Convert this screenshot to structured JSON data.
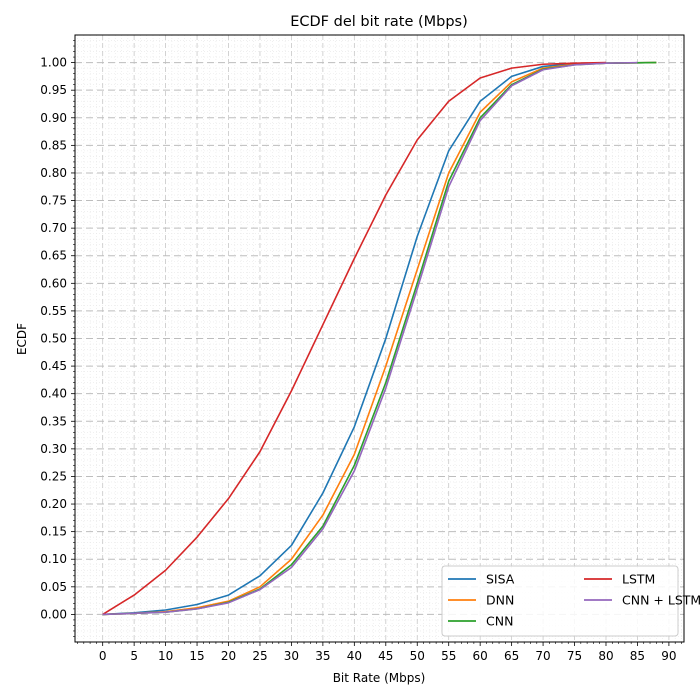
{
  "chart_data": {
    "type": "line",
    "title": "ECDF del bit rate (Mbps)",
    "xlabel": "Bit Rate (Mbps)",
    "ylabel": "ECDF",
    "xlim": [
      -4.4,
      92.4
    ],
    "ylim": [
      -0.05,
      1.05
    ],
    "xticks": [
      0,
      5,
      10,
      15,
      20,
      25,
      30,
      35,
      40,
      45,
      50,
      55,
      60,
      65,
      70,
      75,
      80,
      85,
      90
    ],
    "yticks": [
      0.0,
      0.05,
      0.1,
      0.15,
      0.2,
      0.25,
      0.3,
      0.35,
      0.4,
      0.45,
      0.5,
      0.55,
      0.6,
      0.65,
      0.7,
      0.75,
      0.8,
      0.85,
      0.9,
      0.95,
      1.0
    ],
    "ytick_labels": [
      "0.00",
      "0.05",
      "0.10",
      "0.15",
      "0.20",
      "0.25",
      "0.30",
      "0.35",
      "0.40",
      "0.45",
      "0.50",
      "0.55",
      "0.60",
      "0.65",
      "0.70",
      "0.75",
      "0.80",
      "0.85",
      "0.90",
      "0.95",
      "1.00"
    ],
    "grid": "major dashed, minor dotted",
    "legend_position": "lower-right",
    "legend_columns": 2,
    "series": [
      {
        "name": "SISA",
        "color": "#1f77b4",
        "x": [
          0,
          5,
          10,
          15,
          20,
          25,
          30,
          35,
          40,
          45,
          50,
          55,
          60,
          65,
          70,
          75,
          80,
          88
        ],
        "y": [
          0.0,
          0.003,
          0.008,
          0.018,
          0.035,
          0.07,
          0.125,
          0.22,
          0.34,
          0.5,
          0.685,
          0.84,
          0.93,
          0.975,
          0.993,
          0.998,
          0.999,
          1.0
        ]
      },
      {
        "name": "DNN",
        "color": "#ff7f0e",
        "x": [
          0,
          5,
          10,
          15,
          20,
          25,
          30,
          35,
          40,
          45,
          50,
          55,
          60,
          65,
          70,
          75,
          80,
          88
        ],
        "y": [
          0.0,
          0.002,
          0.005,
          0.012,
          0.024,
          0.05,
          0.1,
          0.18,
          0.29,
          0.45,
          0.625,
          0.8,
          0.91,
          0.965,
          0.99,
          0.997,
          0.999,
          1.0
        ]
      },
      {
        "name": "CNN",
        "color": "#2ca02c",
        "x": [
          0,
          5,
          10,
          15,
          20,
          25,
          30,
          35,
          40,
          45,
          50,
          55,
          60,
          65,
          70,
          75,
          80,
          88
        ],
        "y": [
          0.0,
          0.002,
          0.004,
          0.01,
          0.022,
          0.046,
          0.09,
          0.16,
          0.27,
          0.42,
          0.6,
          0.785,
          0.9,
          0.96,
          0.988,
          0.996,
          0.999,
          1.0
        ]
      },
      {
        "name": "LSTM",
        "color": "#d62728",
        "x": [
          0,
          5,
          10,
          15,
          20,
          25,
          30,
          35,
          40,
          45,
          50,
          55,
          60,
          65,
          70,
          75,
          80
        ],
        "y": [
          0.0,
          0.035,
          0.08,
          0.14,
          0.21,
          0.295,
          0.405,
          0.525,
          0.645,
          0.76,
          0.86,
          0.93,
          0.972,
          0.99,
          0.997,
          0.999,
          1.0
        ]
      },
      {
        "name": "CNN + LSTM",
        "color": "#9467bd",
        "x": [
          0,
          5,
          10,
          15,
          20,
          25,
          30,
          35,
          40,
          45,
          50,
          55,
          60,
          65,
          70,
          75,
          80,
          85
        ],
        "y": [
          0.0,
          0.002,
          0.004,
          0.01,
          0.021,
          0.045,
          0.085,
          0.155,
          0.26,
          0.41,
          0.59,
          0.775,
          0.895,
          0.958,
          0.987,
          0.996,
          0.999,
          1.0
        ]
      }
    ]
  }
}
